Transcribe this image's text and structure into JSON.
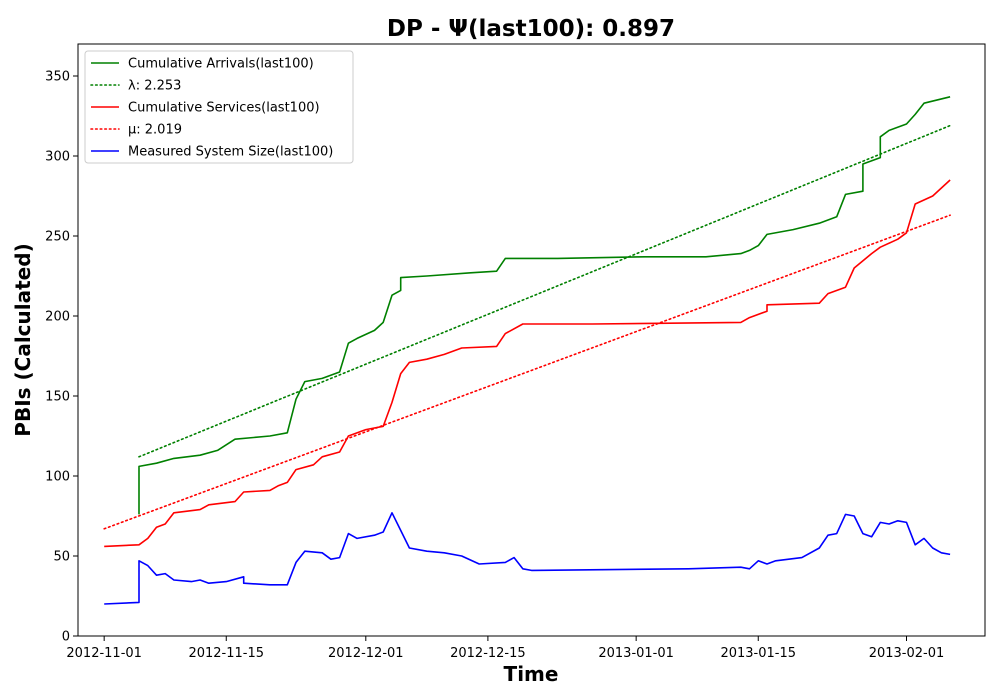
{
  "chart_data": {
    "type": "line",
    "title": "DP -  Ψ(last100): 0.897",
    "xlabel": "Time",
    "ylabel": "PBIs (Calculated)",
    "xlim": [
      "2012-10-29",
      "2013-02-10"
    ],
    "ylim": [
      0,
      370
    ],
    "x_ticks": [
      "2012-11-01",
      "2012-11-15",
      "2012-12-01",
      "2012-12-15",
      "2013-01-01",
      "2013-01-15",
      "2013-02-01"
    ],
    "y_ticks": [
      0,
      50,
      100,
      150,
      200,
      250,
      300,
      350
    ],
    "grid": false,
    "legend_position": "upper-left",
    "series": [
      {
        "name": "Cumulative Arrivals(last100)",
        "color": "#008000",
        "style": "solid",
        "points": [
          [
            "2012-11-05",
            76
          ],
          [
            "2012-11-05",
            106
          ],
          [
            "2012-11-07",
            108
          ],
          [
            "2012-11-09",
            111
          ],
          [
            "2012-11-12",
            113
          ],
          [
            "2012-11-14",
            116
          ],
          [
            "2012-11-16",
            123
          ],
          [
            "2012-11-20",
            125
          ],
          [
            "2012-11-22",
            127
          ],
          [
            "2012-11-23",
            148
          ],
          [
            "2012-11-24",
            159
          ],
          [
            "2012-11-26",
            161
          ],
          [
            "2012-11-28",
            165
          ],
          [
            "2012-11-29",
            183
          ],
          [
            "2012-11-30",
            186
          ],
          [
            "2012-12-02",
            191
          ],
          [
            "2012-12-03",
            196
          ],
          [
            "2012-12-04",
            213
          ],
          [
            "2012-12-05",
            216
          ],
          [
            "2012-12-05",
            224
          ],
          [
            "2012-12-08",
            225
          ],
          [
            "2012-12-13",
            227
          ],
          [
            "2012-12-16",
            228
          ],
          [
            "2012-12-17",
            236
          ],
          [
            "2012-12-23",
            236
          ],
          [
            "2013-01-02",
            237
          ],
          [
            "2013-01-09",
            237
          ],
          [
            "2013-01-13",
            239
          ],
          [
            "2013-01-14",
            241
          ],
          [
            "2013-01-15",
            244
          ],
          [
            "2013-01-16",
            251
          ],
          [
            "2013-01-19",
            254
          ],
          [
            "2013-01-22",
            258
          ],
          [
            "2013-01-24",
            262
          ],
          [
            "2013-01-25",
            276
          ],
          [
            "2013-01-27",
            278
          ],
          [
            "2013-01-27",
            295
          ],
          [
            "2013-01-29",
            299
          ],
          [
            "2013-01-29",
            312
          ],
          [
            "2013-01-30",
            316
          ],
          [
            "2013-02-01",
            320
          ],
          [
            "2013-02-02",
            326
          ],
          [
            "2013-02-03",
            333
          ],
          [
            "2013-02-06",
            337
          ]
        ]
      },
      {
        "name": "λ: 2.253",
        "color": "#008000",
        "style": "dotted",
        "points": [
          [
            "2012-11-05",
            112
          ],
          [
            "2013-02-06",
            319
          ]
        ]
      },
      {
        "name": "Cumulative Services(last100)",
        "color": "#ff0000",
        "style": "solid",
        "points": [
          [
            "2012-11-01",
            56
          ],
          [
            "2012-11-05",
            57
          ],
          [
            "2012-11-06",
            61
          ],
          [
            "2012-11-07",
            68
          ],
          [
            "2012-11-08",
            70
          ],
          [
            "2012-11-09",
            77
          ],
          [
            "2012-11-12",
            79
          ],
          [
            "2012-11-13",
            82
          ],
          [
            "2012-11-16",
            84
          ],
          [
            "2012-11-17",
            90
          ],
          [
            "2012-11-20",
            91
          ],
          [
            "2012-11-21",
            94
          ],
          [
            "2012-11-22",
            96
          ],
          [
            "2012-11-23",
            104
          ],
          [
            "2012-11-25",
            107
          ],
          [
            "2012-11-26",
            112
          ],
          [
            "2012-11-28",
            115
          ],
          [
            "2012-11-29",
            125
          ],
          [
            "2012-12-01",
            129
          ],
          [
            "2012-12-03",
            131
          ],
          [
            "2012-12-04",
            146
          ],
          [
            "2012-12-05",
            164
          ],
          [
            "2012-12-06",
            171
          ],
          [
            "2012-12-08",
            173
          ],
          [
            "2012-12-10",
            176
          ],
          [
            "2012-12-12",
            180
          ],
          [
            "2012-12-16",
            181
          ],
          [
            "2012-12-17",
            189
          ],
          [
            "2012-12-19",
            195
          ],
          [
            "2012-12-27",
            195
          ],
          [
            "2013-01-13",
            196
          ],
          [
            "2013-01-14",
            199
          ],
          [
            "2013-01-16",
            203
          ],
          [
            "2013-01-16",
            207
          ],
          [
            "2013-01-22",
            208
          ],
          [
            "2013-01-23",
            214
          ],
          [
            "2013-01-25",
            218
          ],
          [
            "2013-01-26",
            230
          ],
          [
            "2013-01-28",
            239
          ],
          [
            "2013-01-29",
            243
          ],
          [
            "2013-01-31",
            248
          ],
          [
            "2013-02-01",
            252
          ],
          [
            "2013-02-02",
            270
          ],
          [
            "2013-02-04",
            275
          ],
          [
            "2013-02-06",
            285
          ]
        ]
      },
      {
        "name": "μ: 2.019",
        "color": "#ff0000",
        "style": "dotted",
        "points": [
          [
            "2012-11-01",
            67
          ],
          [
            "2013-02-06",
            263
          ]
        ]
      },
      {
        "name": "Measured System Size(last100)",
        "color": "#0000ff",
        "style": "solid",
        "points": [
          [
            "2012-11-01",
            20
          ],
          [
            "2012-11-05",
            21
          ],
          [
            "2012-11-05",
            47
          ],
          [
            "2012-11-06",
            44
          ],
          [
            "2012-11-07",
            38
          ],
          [
            "2012-11-08",
            39
          ],
          [
            "2012-11-09",
            35
          ],
          [
            "2012-11-11",
            34
          ],
          [
            "2012-11-12",
            35
          ],
          [
            "2012-11-13",
            33
          ],
          [
            "2012-11-15",
            34
          ],
          [
            "2012-11-17",
            37
          ],
          [
            "2012-11-17",
            33
          ],
          [
            "2012-11-20",
            32
          ],
          [
            "2012-11-22",
            32
          ],
          [
            "2012-11-23",
            46
          ],
          [
            "2012-11-24",
            53
          ],
          [
            "2012-11-26",
            52
          ],
          [
            "2012-11-27",
            48
          ],
          [
            "2012-11-28",
            49
          ],
          [
            "2012-11-29",
            64
          ],
          [
            "2012-11-30",
            61
          ],
          [
            "2012-12-02",
            63
          ],
          [
            "2012-12-03",
            65
          ],
          [
            "2012-12-04",
            77
          ],
          [
            "2012-12-05",
            66
          ],
          [
            "2012-12-06",
            55
          ],
          [
            "2012-12-08",
            53
          ],
          [
            "2012-12-10",
            52
          ],
          [
            "2012-12-12",
            50
          ],
          [
            "2012-12-14",
            45
          ],
          [
            "2012-12-17",
            46
          ],
          [
            "2012-12-18",
            49
          ],
          [
            "2012-12-19",
            42
          ],
          [
            "2012-12-20",
            41
          ],
          [
            "2013-01-07",
            42
          ],
          [
            "2013-01-13",
            43
          ],
          [
            "2013-01-14",
            42
          ],
          [
            "2013-01-15",
            47
          ],
          [
            "2013-01-16",
            45
          ],
          [
            "2013-01-17",
            47
          ],
          [
            "2013-01-20",
            49
          ],
          [
            "2013-01-22",
            55
          ],
          [
            "2013-01-23",
            63
          ],
          [
            "2013-01-24",
            64
          ],
          [
            "2013-01-25",
            76
          ],
          [
            "2013-01-26",
            75
          ],
          [
            "2013-01-27",
            64
          ],
          [
            "2013-01-28",
            62
          ],
          [
            "2013-01-29",
            71
          ],
          [
            "2013-01-30",
            70
          ],
          [
            "2013-01-31",
            72
          ],
          [
            "2013-02-01",
            71
          ],
          [
            "2013-02-02",
            57
          ],
          [
            "2013-02-03",
            61
          ],
          [
            "2013-02-04",
            55
          ],
          [
            "2013-02-05",
            52
          ],
          [
            "2013-02-06",
            51
          ]
        ]
      }
    ]
  }
}
